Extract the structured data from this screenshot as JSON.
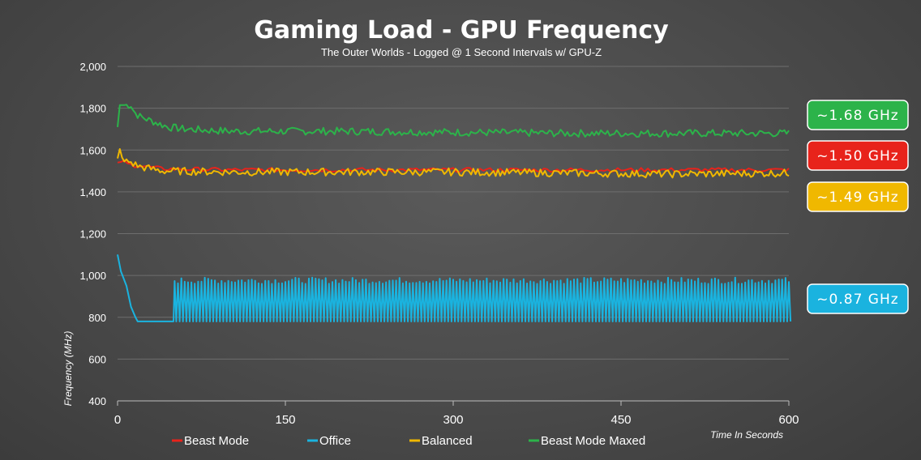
{
  "chart_data": {
    "type": "line",
    "title": "Gaming Load - GPU Frequency",
    "subtitle": "The Outer Worlds - Logged @ 1 Second Intervals w/ GPU-Z",
    "xlabel": "Time In Seconds",
    "ylabel": "Frequency (MHz)",
    "xlim": [
      0,
      600
    ],
    "ylim": [
      400,
      2000
    ],
    "xticks": [
      "0",
      "150",
      "300",
      "450",
      "600"
    ],
    "yticks": [
      "2,000",
      "1,800",
      "1,600",
      "1,400",
      "1,200",
      "1,000",
      "800",
      "600",
      "400"
    ],
    "grid": true,
    "legend_position": "bottom",
    "series": [
      {
        "name": "Beast Mode",
        "color": "#e8231b",
        "points": [
          [
            0,
            1540
          ],
          [
            5,
            1545
          ],
          [
            10,
            1530
          ],
          [
            20,
            1525
          ],
          [
            40,
            1510
          ],
          [
            100,
            1505
          ],
          [
            200,
            1505
          ],
          [
            300,
            1505
          ],
          [
            400,
            1505
          ],
          [
            500,
            1505
          ],
          [
            600,
            1505
          ]
        ],
        "noise_amplitude": 10,
        "noise_period": 3,
        "callout": "~1.50 GHz"
      },
      {
        "name": "Office",
        "color": "#1ab3df",
        "points": [
          [
            0,
            1100
          ],
          [
            3,
            1020
          ],
          [
            8,
            950
          ],
          [
            12,
            850
          ],
          [
            16,
            800
          ],
          [
            18,
            780
          ],
          [
            50,
            780
          ]
        ],
        "osc_from": 51,
        "osc_to": 600,
        "osc_low": 780,
        "osc_high": 975,
        "osc_period": 3,
        "callout": "~0.87 GHz"
      },
      {
        "name": "Balanced",
        "color": "#f0b800",
        "points": [
          [
            0,
            1560
          ],
          [
            2,
            1605
          ],
          [
            5,
            1545
          ],
          [
            10,
            1545
          ],
          [
            20,
            1520
          ],
          [
            40,
            1500
          ],
          [
            100,
            1495
          ],
          [
            200,
            1495
          ],
          [
            300,
            1495
          ],
          [
            400,
            1490
          ],
          [
            500,
            1485
          ],
          [
            600,
            1490
          ]
        ],
        "noise_amplitude": 18,
        "noise_period": 2,
        "callout": "~1.49 GHz"
      },
      {
        "name": "Beast Mode Maxed",
        "color": "#2cb34a",
        "points": [
          [
            0,
            1710
          ],
          [
            2,
            1815
          ],
          [
            5,
            1815
          ],
          [
            12,
            1815
          ],
          [
            15,
            1780
          ],
          [
            20,
            1760
          ],
          [
            30,
            1740
          ],
          [
            45,
            1710
          ],
          [
            60,
            1700
          ],
          [
            100,
            1690
          ],
          [
            200,
            1690
          ],
          [
            300,
            1685
          ],
          [
            400,
            1680
          ],
          [
            500,
            1680
          ],
          [
            600,
            1680
          ]
        ],
        "noise_amplitude": 18,
        "noise_period": 2,
        "callout": "~1.68 GHz"
      }
    ]
  }
}
